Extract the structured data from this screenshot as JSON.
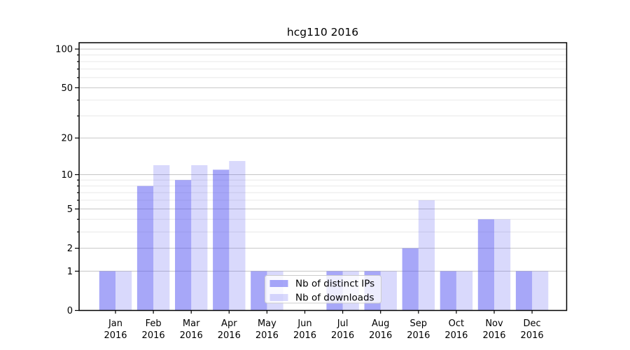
{
  "chart_data": {
    "type": "bar",
    "title": "hcg110 2016",
    "categories": [
      "Jan 2016",
      "Feb 2016",
      "Mar 2016",
      "Apr 2016",
      "May 2016",
      "Jun 2016",
      "Jul 2016",
      "Aug 2016",
      "Sep 2016",
      "Oct 2016",
      "Nov 2016",
      "Dec 2016"
    ],
    "series": [
      {
        "name": "Nb of distinct IPs",
        "values": [
          1,
          8,
          9,
          11,
          1,
          0,
          1,
          1,
          2,
          1,
          4,
          1
        ],
        "color": "rgba(80,80,241,0.5)"
      },
      {
        "name": "Nb of downloads",
        "values": [
          1,
          12,
          12,
          13,
          1,
          0,
          1,
          1,
          6,
          1,
          4,
          1
        ],
        "color": "rgba(80,80,241,0.22)"
      }
    ],
    "y_axis": {
      "scale": "log1p",
      "major_ticks": [
        0,
        1,
        2,
        5,
        10,
        20,
        50,
        100
      ],
      "minor_ticks": [
        3,
        4,
        6,
        7,
        8,
        9,
        30,
        40,
        60,
        70,
        80,
        90
      ],
      "max": 112
    },
    "x_axis": {
      "label_lines": 2
    },
    "legend": {
      "position": "lower center"
    },
    "grid": {
      "orientation": "horizontal",
      "major_color": "#c6c6c6",
      "minor_color": "#e8e8e8"
    }
  }
}
